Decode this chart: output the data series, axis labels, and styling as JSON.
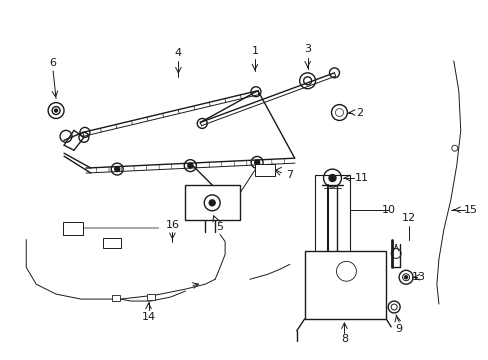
{
  "bg_color": "#ffffff",
  "fig_width": 4.89,
  "fig_height": 3.6,
  "dpi": 100,
  "lc": "#1a1a1a",
  "lw": 1.0,
  "tlw": 0.7
}
